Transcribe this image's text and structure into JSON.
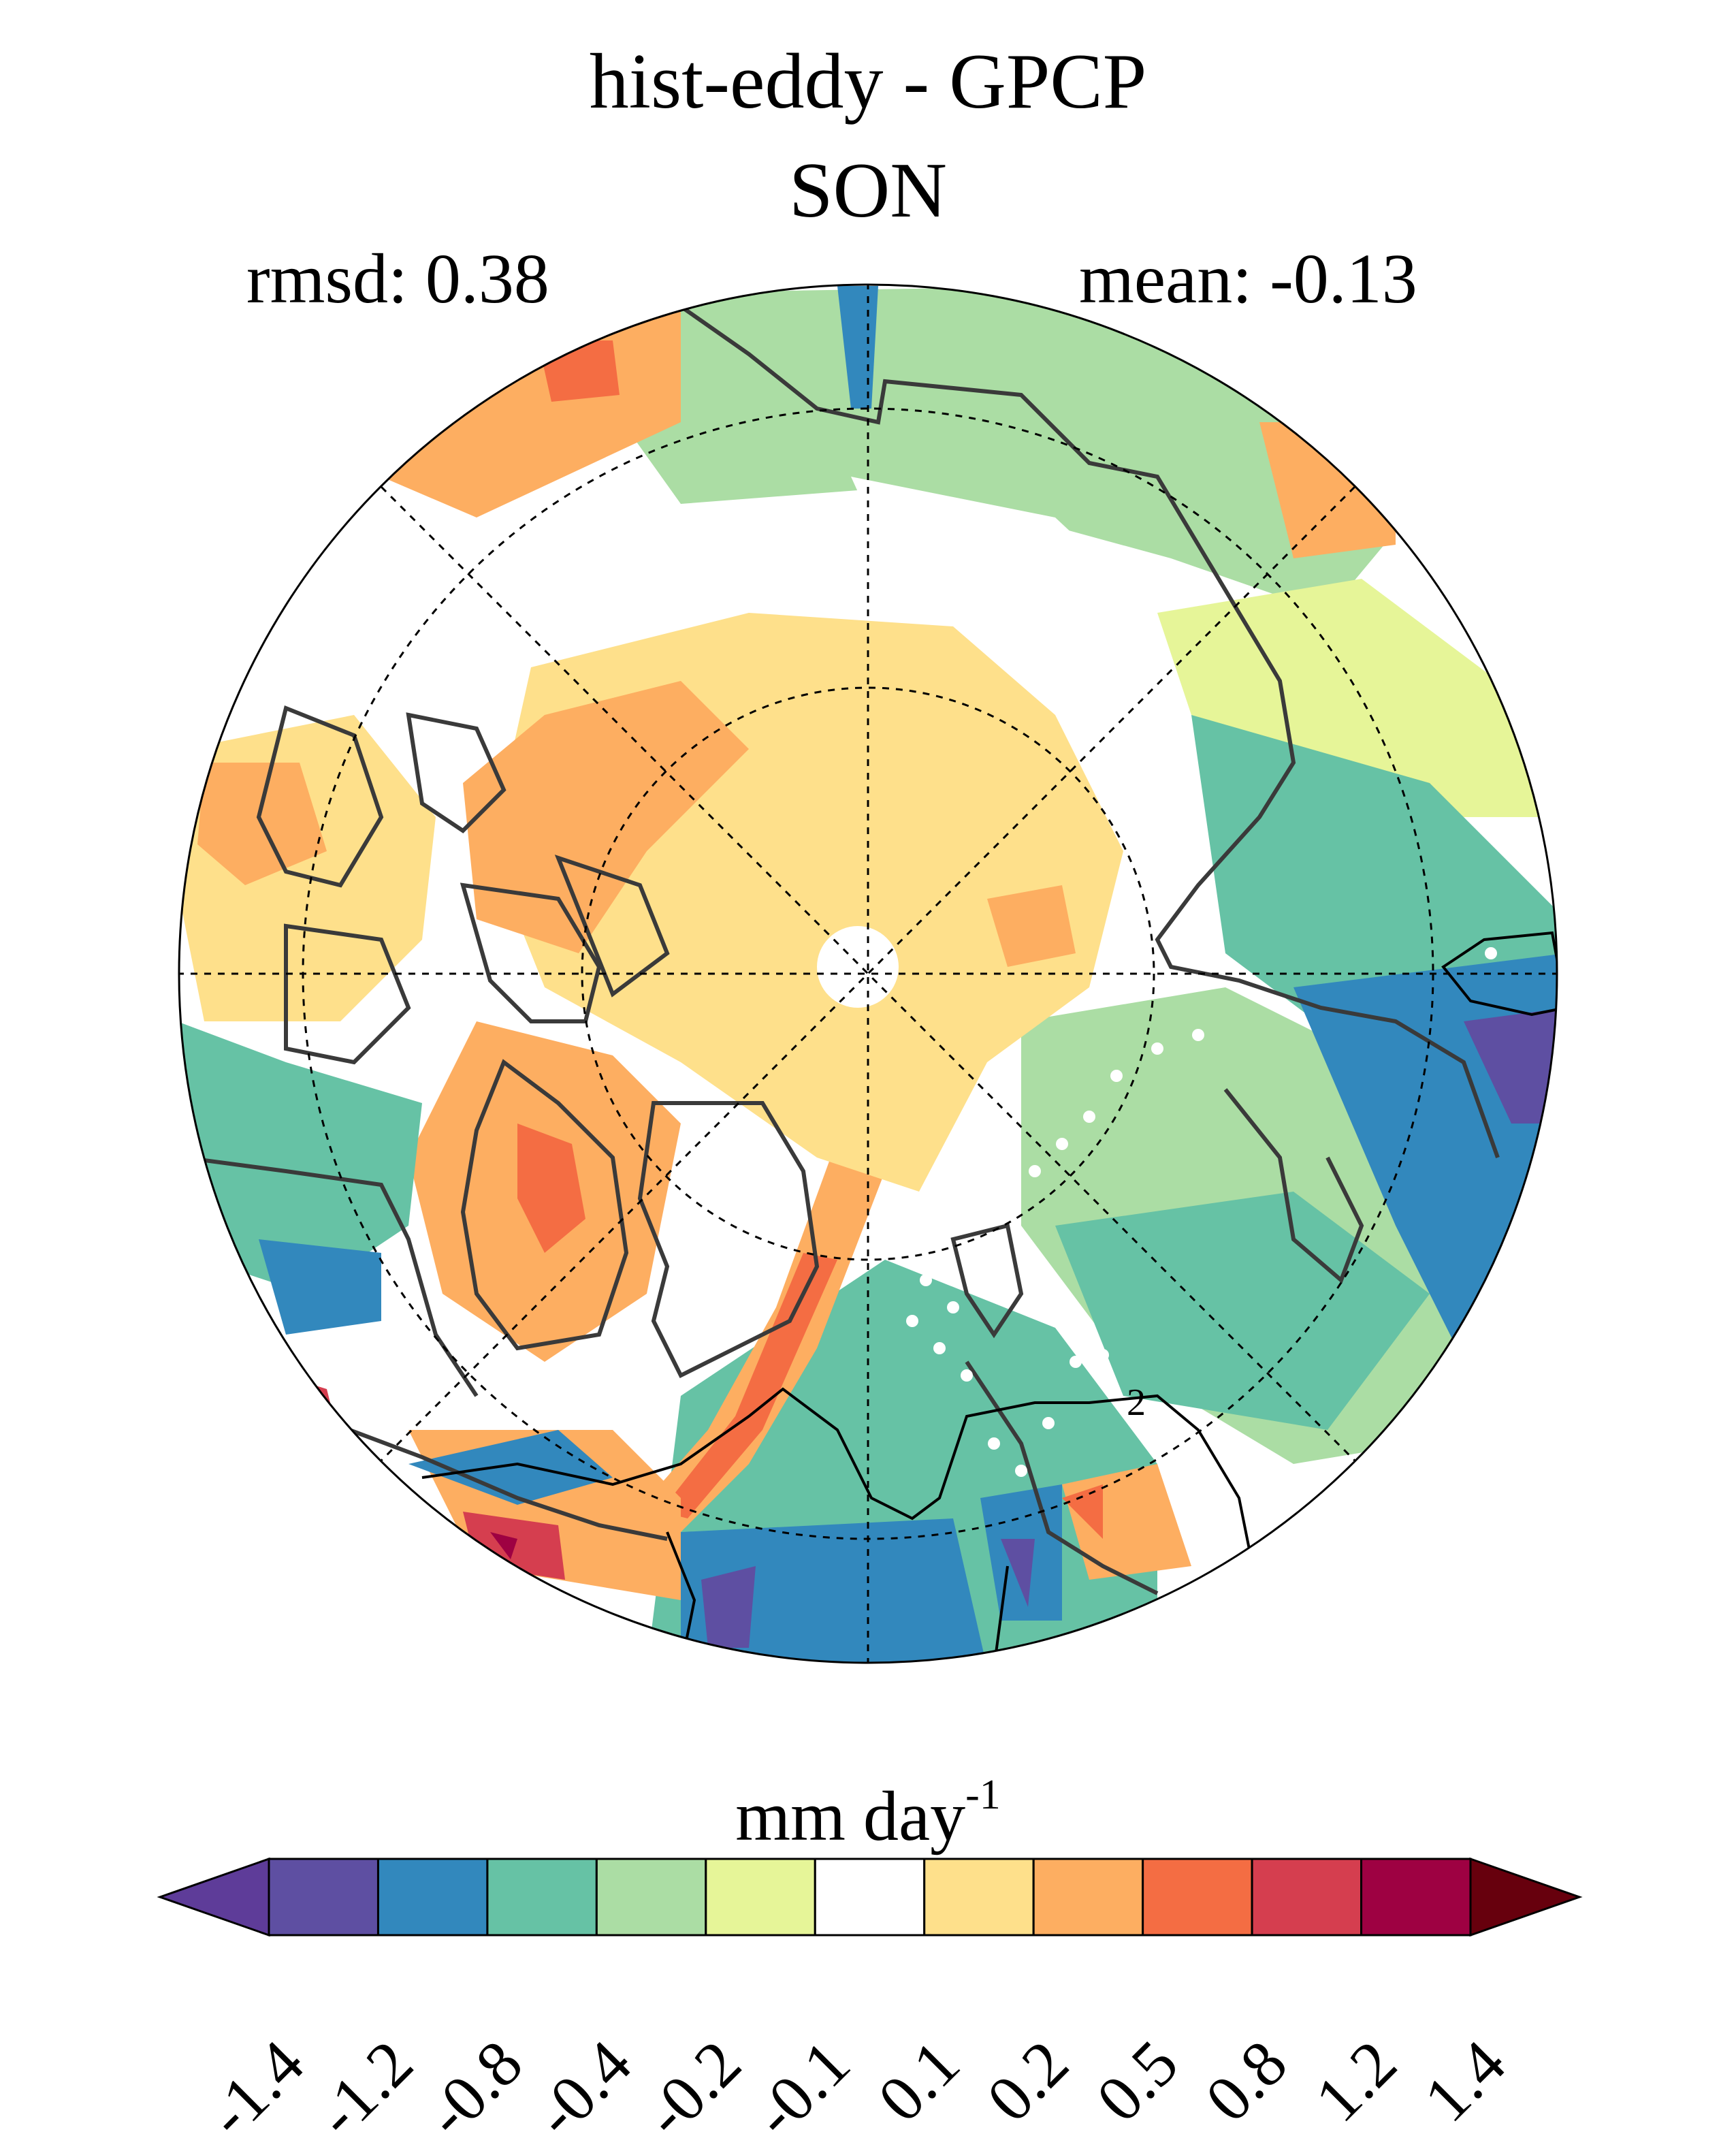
{
  "title": "hist-eddy - GPCP",
  "season": "SON",
  "rmsd_label": "rmsd: 0.38",
  "mean_label": "mean: -0.13",
  "colorbar": {
    "unit_base": "mm day",
    "unit_exp": "-1",
    "ticks": [
      "-1.4",
      "-1.2",
      "-0.8",
      "-0.4",
      "-0.2",
      "-0.1",
      "0.1",
      "0.2",
      "0.5",
      "0.8",
      "1.2",
      "1.4"
    ],
    "colors": [
      "#5e3c99",
      "#5e4fa2",
      "#3288bd",
      "#66c2a5",
      "#abdda4",
      "#e6f598",
      "#ffffff",
      "#fee08b",
      "#fdae61",
      "#f46d43",
      "#d53e4f",
      "#9e0142",
      "#67000d"
    ]
  },
  "map": {
    "projection": "north polar stereographic",
    "contour_label": "2"
  }
}
